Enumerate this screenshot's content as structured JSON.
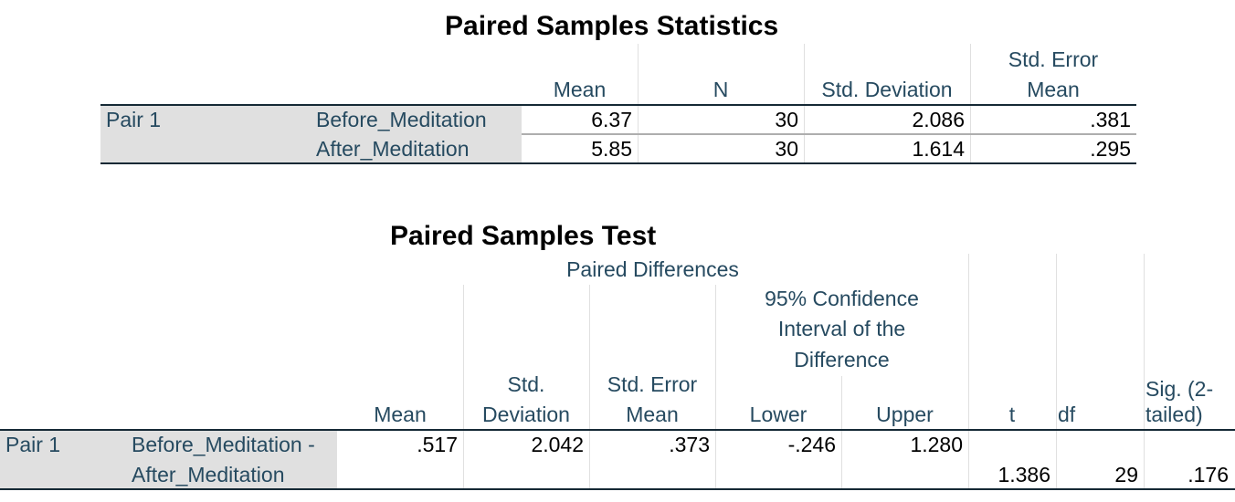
{
  "stats": {
    "title": "Paired Samples Statistics",
    "headers": {
      "mean": "Mean",
      "n": "N",
      "std_dev": "Std. Deviation",
      "std_err_1": "Std. Error",
      "std_err_2": "Mean"
    },
    "pair_label": "Pair 1",
    "rows": [
      {
        "variable": "Before_Meditation",
        "mean": "6.37",
        "n": "30",
        "std_dev": "2.086",
        "std_err": ".381"
      },
      {
        "variable": "After_Meditation",
        "mean": "5.85",
        "n": "30",
        "std_dev": "1.614",
        "std_err": ".295"
      }
    ]
  },
  "test": {
    "title": "Paired Samples Test",
    "headers": {
      "paired_diff": "Paired Differences",
      "ci_1": "95% Confidence",
      "ci_2": "Interval of the",
      "ci_3": "Difference",
      "mean": "Mean",
      "std_dev_1": "Std.",
      "std_dev_2": "Deviation",
      "std_err_1": "Std. Error",
      "std_err_2": "Mean",
      "lower": "Lower",
      "upper": "Upper",
      "t": "t",
      "df": "df",
      "sig_1": "Sig. (2-",
      "sig_2": "tailed)"
    },
    "pair_label": "Pair 1",
    "row": {
      "label_1": "Before_Meditation -",
      "label_2": "After_Meditation",
      "mean": ".517",
      "std_dev": "2.042",
      "std_err": ".373",
      "lower": "-.246",
      "upper": "1.280",
      "t": "1.386",
      "df": "29",
      "sig": ".176"
    }
  }
}
